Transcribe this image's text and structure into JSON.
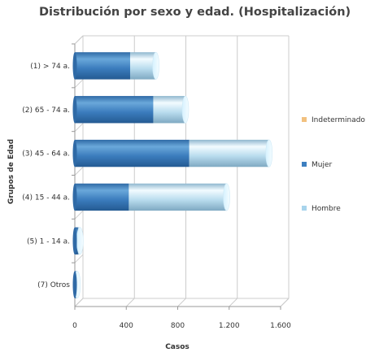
{
  "chart_data": {
    "type": "bar",
    "orientation": "horizontal",
    "stacked": true,
    "style": "3d-cylinder",
    "title": "Distribución por sexo y edad. (Hospitalización)",
    "xlabel": "Casos",
    "ylabel": "Grupos de Edad",
    "xlim": [
      0,
      1600
    ],
    "xticks": [
      0,
      400,
      800,
      1200,
      1600
    ],
    "xtick_labels": [
      "0",
      "400",
      "800",
      "1.200",
      "1.600"
    ],
    "grid": true,
    "legend_position": "right",
    "categories": [
      "(1) > 74 a.",
      "(2) 65 - 74 a.",
      "(3) 45 - 64 a.",
      "(4) 15 - 44 a.",
      "(5) 1 - 14 a.",
      "(7) Otros"
    ],
    "series": [
      {
        "name": "Indeterminado",
        "color": "#f2c17f",
        "values": [
          0,
          0,
          0,
          0,
          0,
          0
        ]
      },
      {
        "name": "Mujer",
        "color": "#3d7fc0",
        "values": [
          430,
          610,
          890,
          420,
          25,
          10
        ]
      },
      {
        "name": "Hombre",
        "color": "#a8d4ec",
        "values": [
          200,
          250,
          620,
          760,
          15,
          8
        ]
      }
    ],
    "legend_order": [
      "Indeterminado",
      "Mujer",
      "Hombre"
    ]
  }
}
